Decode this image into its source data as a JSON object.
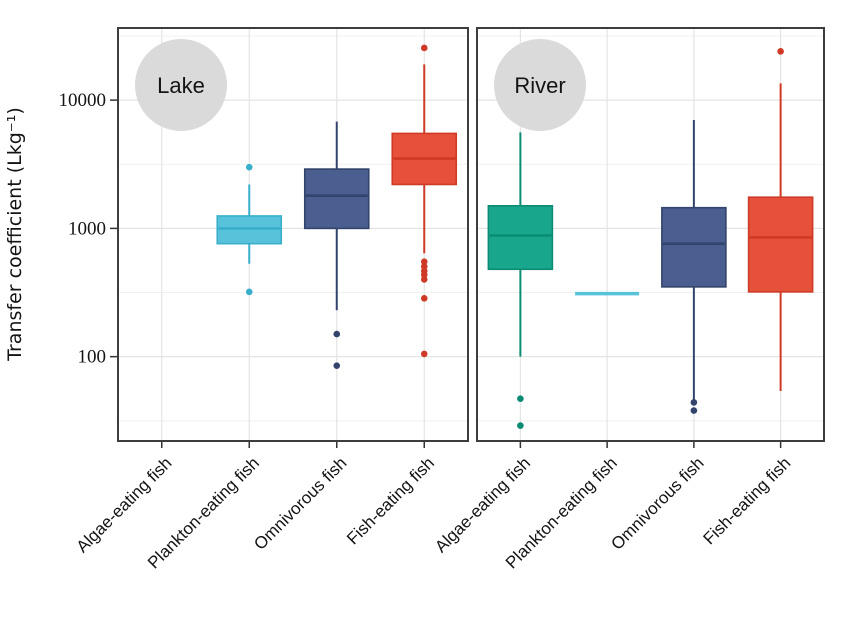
{
  "figure": {
    "ylabel": "Transfer coefficient (Lkg⁻¹)"
  },
  "chart_data": {
    "type": "boxplot",
    "y_scale": "log10",
    "ylabel": "Transfer coefficient (Lkg⁻¹)",
    "ylim": [
      22,
      36500
    ],
    "yticks": [
      100,
      1000,
      10000
    ],
    "ytick_labels": [
      "100",
      "1000",
      "10000"
    ],
    "minor_gridlines": [
      31.6,
      316,
      3162,
      31623
    ],
    "grid_on": true,
    "categories": [
      "Algae-eating fish",
      "Plankton-eating fish",
      "Omnivorous fish",
      "Fish-eating fish"
    ],
    "palette": {
      "cyan": {
        "fill": "#59C2DB",
        "stroke": "#39AFCB"
      },
      "navy": {
        "fill": "#4A5E90",
        "stroke": "#32446C"
      },
      "green": {
        "fill": "#18A78C",
        "stroke": "#0C8B74"
      },
      "red": {
        "fill": "#E6513C",
        "stroke": "#CE3A26"
      }
    },
    "badge_color": "#DADADA",
    "grid_major_color": "#E4E4E4",
    "grid_minor_color": "#F0F0F0",
    "border_color": "#3D3D3D",
    "panels": [
      {
        "label": "Lake",
        "boxes": [
          {
            "category": "Algae-eating fish",
            "no_data": true
          },
          {
            "category": "Plankton-eating fish",
            "color": "cyan",
            "stats": {
              "whisker_low": 530,
              "q1": 760,
              "median": 1000,
              "q3": 1250,
              "whisker_high": 2200
            },
            "outliers": [
              3000,
              320
            ]
          },
          {
            "category": "Omnivorous fish",
            "color": "navy",
            "stats": {
              "whisker_low": 230,
              "q1": 1000,
              "median": 1800,
              "q3": 2900,
              "whisker_high": 6800
            },
            "outliers": [
              150,
              85
            ]
          },
          {
            "category": "Fish-eating fish",
            "color": "red",
            "stats": {
              "whisker_low": 640,
              "q1": 2200,
              "median": 3500,
              "q3": 5500,
              "whisker_high": 19000
            },
            "outliers": [
              25500,
              550,
              505,
              465,
              435,
              400,
              285,
              105
            ]
          }
        ]
      },
      {
        "label": "River",
        "boxes": [
          {
            "category": "Algae-eating fish",
            "color": "green",
            "stats": {
              "whisker_low": 100,
              "q1": 480,
              "median": 880,
              "q3": 1500,
              "whisker_high": 5600
            },
            "outliers": [
              47,
              29
            ]
          },
          {
            "category": "Plankton-eating fish",
            "color": "cyan",
            "stats": {
              "whisker_low": null,
              "q1": 310,
              "median": 310,
              "q3": 310,
              "whisker_high": null
            },
            "outliers": []
          },
          {
            "category": "Omnivorous fish",
            "color": "navy",
            "stats": {
              "whisker_low": 46,
              "q1": 350,
              "median": 760,
              "q3": 1450,
              "whisker_high": 7000
            },
            "outliers": [
              44,
              38
            ]
          },
          {
            "category": "Fish-eating fish",
            "color": "red",
            "stats": {
              "whisker_low": 54,
              "q1": 320,
              "median": 850,
              "q3": 1750,
              "whisker_high": 13500
            },
            "outliers": [
              24000
            ]
          }
        ]
      }
    ]
  }
}
